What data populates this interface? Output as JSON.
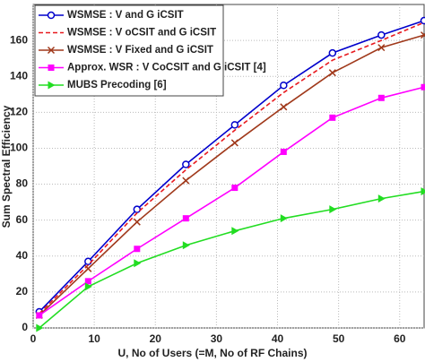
{
  "chart_data": {
    "type": "line",
    "xlabel": "U, No of Users (=M, No of RF Chains)",
    "ylabel": "Sum Spectral Efficiency",
    "x": [
      1,
      9,
      17,
      25,
      33,
      41,
      49,
      57,
      64
    ],
    "series": [
      {
        "name": "WSMSE : V and G iCSIT",
        "color": "#0000cc",
        "marker": "circle",
        "dash": "solid",
        "values": [
          9,
          37,
          66,
          91,
          113,
          135,
          153,
          163,
          171
        ]
      },
      {
        "name": "WSMSE : V oCSIT and G iCSIT",
        "color": "#e8191e",
        "marker": "none",
        "dash": "dashed",
        "values": [
          8,
          35,
          64,
          88,
          110,
          131,
          149,
          160,
          170
        ]
      },
      {
        "name": "WSMSE : V Fixed and G iCSIT",
        "color": "#a0391b",
        "marker": "x",
        "dash": "solid",
        "values": [
          7,
          33,
          59,
          82,
          103,
          123,
          142,
          156,
          163
        ]
      },
      {
        "name": "Approx. WSR : V CoCSIT and G iCSIT [4]",
        "color": "#ff00ff",
        "marker": "square",
        "dash": "solid",
        "values": [
          7,
          26,
          44,
          61,
          78,
          98,
          117,
          128,
          134
        ]
      },
      {
        "name": "MUBS Precoding [6]",
        "color": "#22dd22",
        "marker": "triangle",
        "dash": "solid",
        "values": [
          0,
          23,
          36,
          46,
          54,
          61,
          66,
          72,
          76
        ]
      }
    ],
    "xlim": [
      0,
      64
    ],
    "ylim": [
      0,
      180
    ],
    "xticks": [
      0,
      10,
      20,
      30,
      40,
      50,
      60
    ],
    "yticks": [
      0,
      20,
      40,
      60,
      80,
      100,
      120,
      140,
      160
    ],
    "grid": true,
    "legend": "upper left"
  }
}
